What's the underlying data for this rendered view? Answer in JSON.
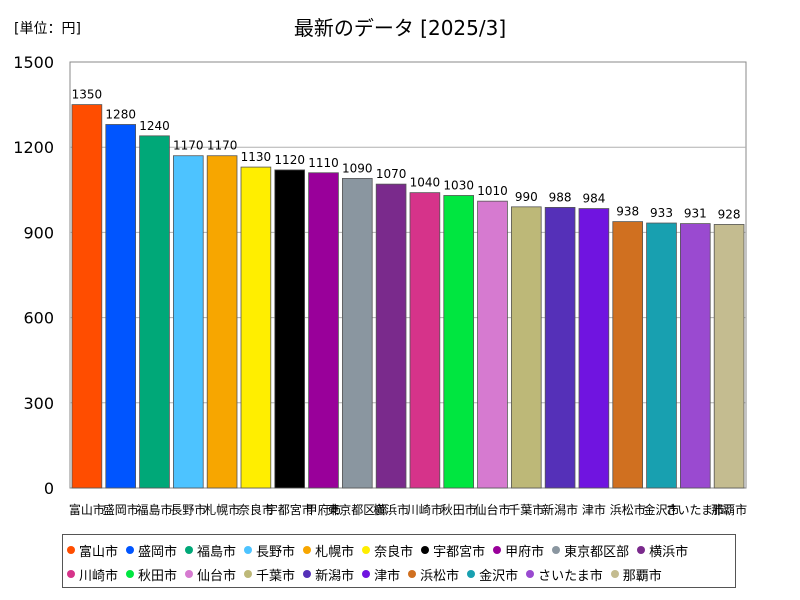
{
  "chart_data": {
    "type": "bar",
    "title": "最新のデータ [2025/3]",
    "unit_label": "[単位：円]",
    "ylim": [
      0,
      1500
    ],
    "yticks": [
      0,
      300,
      600,
      900,
      1200,
      1500
    ],
    "categories": [
      "富山市",
      "盛岡市",
      "福島市",
      "長野市",
      "札幌市",
      "奈良市",
      "宇都宮市",
      "甲府市",
      "東京都区部",
      "横浜市",
      "川崎市",
      "秋田市",
      "仙台市",
      "千葉市",
      "新潟市",
      "津市",
      "浜松市",
      "金沢市",
      "さいたま市",
      "那覇市"
    ],
    "values": [
      1350,
      1280,
      1240,
      1170,
      1170,
      1130,
      1120,
      1110,
      1090,
      1070,
      1040,
      1030,
      1010,
      990,
      988,
      984,
      938,
      933,
      931,
      928
    ],
    "colors": [
      "#ff4d00",
      "#0055ff",
      "#00a878",
      "#4dc3ff",
      "#f7a600",
      "#ffee00",
      "#000000",
      "#99009a",
      "#8a96a0",
      "#7a2a8c",
      "#d6338a",
      "#00e640",
      "#d67ad0",
      "#bdb878",
      "#5530b8",
      "#7014e0",
      "#d07020",
      "#18a0b0",
      "#9a4ad0",
      "#c4bc90"
    ]
  }
}
